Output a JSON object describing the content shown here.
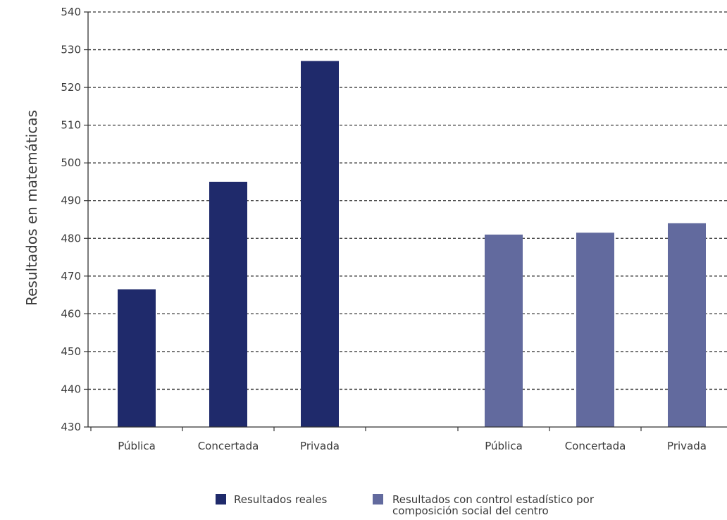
{
  "chart_data": {
    "type": "bar",
    "ylabel": "Resultados en matemáticas",
    "xlabel": "",
    "ylim": [
      430,
      540
    ],
    "yticks": [
      430,
      440,
      450,
      460,
      470,
      480,
      490,
      500,
      510,
      520,
      530,
      540
    ],
    "grid": "horizontal dashed",
    "legend_position": "bottom",
    "groups": [
      {
        "series": "Resultados reales",
        "categories": [
          "Pública",
          "Concertada",
          "Privada"
        ],
        "values": [
          466.5,
          495,
          527
        ]
      },
      {
        "series": "Resultados con control estadístico por composición social del centro",
        "categories": [
          "Pública",
          "Concertada",
          "Privada"
        ],
        "values": [
          481,
          481.5,
          484
        ]
      }
    ],
    "series": [
      {
        "name": "Resultados reales",
        "name_lines": [
          "Resultados reales"
        ],
        "color": "#1f2a6b"
      },
      {
        "name": "Resultados con control estadístico por composición social del centro",
        "name_lines": [
          "Resultados con control estadístico por",
          "composición social del centro"
        ],
        "color": "#626a9e"
      }
    ]
  }
}
